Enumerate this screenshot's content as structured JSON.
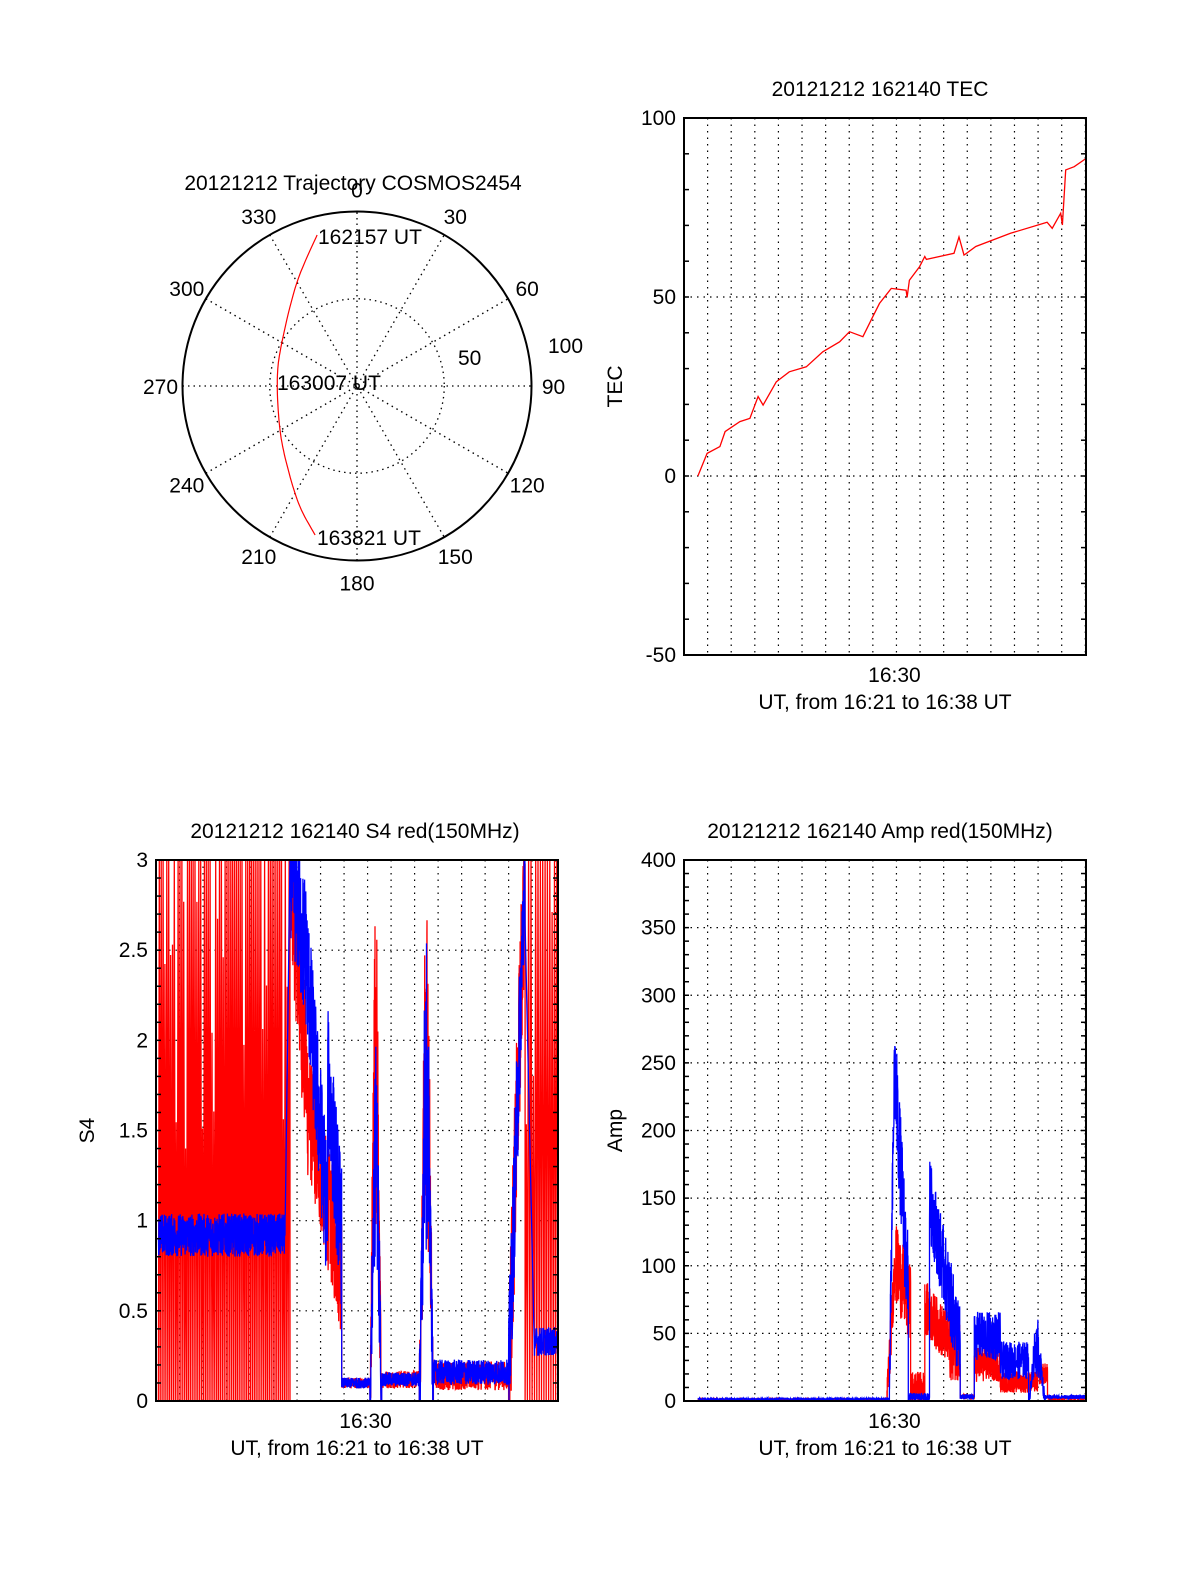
{
  "figure": {
    "background": "#ffffff",
    "series_colors": {
      "red_channel": "#ff0000",
      "blue_channel": "#0000ff"
    }
  },
  "chart_data": [
    {
      "id": "trajectory",
      "type": "polar",
      "title": "20121212 Trajectory COSMOS2454",
      "angle_ticks": [
        "0",
        "30",
        "60",
        "90",
        "120",
        "150",
        "180",
        "210",
        "240",
        "270",
        "300",
        "330"
      ],
      "radial_ticks": [
        "50",
        "100"
      ],
      "radial_range": [
        0,
        100
      ],
      "grid": "dotted",
      "annotations": [
        "162157 UT",
        "163007 UT",
        "163821 UT"
      ],
      "series": [
        {
          "name": "trajectory",
          "color": "#ff0000",
          "azimuth_deg": [
            345.2,
            329.6,
            299.6,
            274.3,
            240.3,
            219.3,
            205.3,
            195.7
          ],
          "radius": [
            89.5,
            68.3,
            49.6,
            45.8,
            50.8,
            62.2,
            76.5,
            88.7
          ]
        }
      ]
    },
    {
      "id": "tec",
      "type": "line",
      "title": "20121212 162140 TEC",
      "xlabel": "UT, from 16:21 to 16:38 UT",
      "ylabel": "TEC",
      "x_unit": "minutes after 16:21:00 UT",
      "xlim": [
        0,
        17.03
      ],
      "x_ticks": [
        {
          "value": 9,
          "label": "16:30"
        }
      ],
      "x_gridlines_every_min": 1,
      "ylim": [
        -50,
        100
      ],
      "y_ticks": [
        "-50",
        "0",
        "50",
        "100"
      ],
      "y_tick_values": [
        -50,
        0,
        50,
        100
      ],
      "grid": true,
      "series": [
        {
          "name": "TEC",
          "color": "#ff0000",
          "x": [
            0.59,
            0.98,
            1.52,
            1.74,
            2.37,
            2.79,
            3.14,
            3.35,
            3.91,
            4.46,
            5.18,
            5.88,
            6.59,
            7.01,
            7.58,
            8.0,
            8.28,
            8.78,
            9.41,
            9.45,
            9.55,
            9.98,
            10.2,
            10.27,
            11.44,
            11.65,
            11.86,
            12.36,
            13.83,
            15.38,
            15.6,
            15.96,
            16.03,
            16.17,
            16.53,
            17.03
          ],
          "y": [
            0,
            6.3,
            8.2,
            12.4,
            15.2,
            16.1,
            22.2,
            19.8,
            26.3,
            29.1,
            30.5,
            34.7,
            37.5,
            40.3,
            38.9,
            44.5,
            48.2,
            52.4,
            51.9,
            49.9,
            54.7,
            58.5,
            61.3,
            60.5,
            62.2,
            66.8,
            61.7,
            64.1,
            67.8,
            70.9,
            69.2,
            73.4,
            70.1,
            85.5,
            86.4,
            88.7
          ]
        }
      ]
    },
    {
      "id": "s4",
      "type": "line",
      "title": "20121212 162140 S4 red(150MHz)",
      "xlabel": "UT, from 16:21 to 16:38 UT",
      "ylabel": "S4",
      "x_unit": "minutes after 16:21:00 UT",
      "xlim": [
        0,
        17.1
      ],
      "x_ticks": [
        {
          "value": 9,
          "label": "16:30"
        }
      ],
      "x_gridlines_every_min": 1,
      "ylim": [
        0,
        3
      ],
      "y_ticks": [
        "0",
        "0.5",
        "1",
        "1.5",
        "2",
        "2.5",
        "3"
      ],
      "y_tick_values": [
        0,
        0.5,
        1,
        1.5,
        2,
        2.5,
        3
      ],
      "grid": true,
      "series": [
        {
          "name": "S4 red channel",
          "color": "#ff0000",
          "segments": [
            {
              "x0": 0.1,
              "x1": 5.7,
              "shape": "spikes",
              "lo": 0,
              "hi": 3,
              "count": 70
            },
            {
              "x0": 5.7,
              "x1": 6.5,
              "shape": "decay",
              "start": 3,
              "end": 1.6,
              "noise": 0.45
            },
            {
              "x0": 6.5,
              "x1": 7.9,
              "shape": "decay",
              "start": 1.6,
              "end": 0.7,
              "noise": 0.35
            },
            {
              "x0": 7.9,
              "x1": 9.1,
              "shape": "flat",
              "level": 0.1,
              "noise": 0.03
            },
            {
              "x0": 9.1,
              "x1": 9.6,
              "shape": "burst",
              "peak": 2.7,
              "base": 0.8,
              "noise": 0.5
            },
            {
              "x0": 9.6,
              "x1": 11.2,
              "shape": "flat",
              "level": 0.12,
              "noise": 0.05
            },
            {
              "x0": 11.2,
              "x1": 11.8,
              "shape": "burst",
              "peak": 2.85,
              "base": 0.9,
              "noise": 0.5
            },
            {
              "x0": 11.8,
              "x1": 15.0,
              "shape": "flat",
              "level": 0.14,
              "noise": 0.08
            },
            {
              "x0": 15.0,
              "x1": 15.7,
              "shape": "rise",
              "start": 0.1,
              "end": 3,
              "noise": 0.5
            },
            {
              "x0": 15.7,
              "x1": 17.1,
              "shape": "spikes",
              "lo": 0,
              "hi": 3,
              "count": 14
            }
          ]
        },
        {
          "name": "S4 blue channel",
          "color": "#0000ff",
          "segments": [
            {
              "x0": 0.1,
              "x1": 5.5,
              "shape": "flat",
              "level": 0.92,
              "noise": 0.12
            },
            {
              "x0": 5.7,
              "x1": 6.3,
              "shape": "decay",
              "start": 3,
              "end": 2.5,
              "noise": 0.4
            },
            {
              "x0": 6.3,
              "x1": 7.3,
              "shape": "decay",
              "start": 2.6,
              "end": 1.0,
              "noise": 0.4
            },
            {
              "x0": 7.3,
              "x1": 7.9,
              "shape": "decay",
              "start": 1.8,
              "end": 0.9,
              "noise": 0.4
            },
            {
              "x0": 7.9,
              "x1": 9.1,
              "shape": "flat",
              "level": 0.1,
              "noise": 0.03
            },
            {
              "x0": 9.1,
              "x1": 9.6,
              "shape": "burst",
              "peak": 1.9,
              "base": 0.8,
              "noise": 0.4
            },
            {
              "x0": 9.6,
              "x1": 11.2,
              "shape": "flat",
              "level": 0.12,
              "noise": 0.04
            },
            {
              "x0": 11.2,
              "x1": 11.8,
              "shape": "burst",
              "peak": 2.45,
              "base": 0.9,
              "noise": 0.5
            },
            {
              "x0": 11.8,
              "x1": 15.0,
              "shape": "flat",
              "level": 0.16,
              "noise": 0.07
            },
            {
              "x0": 15.0,
              "x1": 15.7,
              "shape": "rise",
              "start": 0.1,
              "end": 3,
              "noise": 0.4
            },
            {
              "x0": 16.1,
              "x1": 17.1,
              "shape": "flat",
              "level": 0.33,
              "noise": 0.08
            }
          ]
        }
      ]
    },
    {
      "id": "amp",
      "type": "line",
      "title": "20121212 162140 Amp red(150MHz)",
      "xlabel": "UT, from 16:21 to 16:38 UT",
      "ylabel": "Amp",
      "x_unit": "minutes after 16:21:00 UT",
      "xlim": [
        0,
        17.03
      ],
      "x_ticks": [
        {
          "value": 9,
          "label": "16:30"
        }
      ],
      "x_gridlines_every_min": 1,
      "ylim": [
        0,
        400
      ],
      "y_ticks": [
        "0",
        "50",
        "100",
        "150",
        "200",
        "250",
        "300",
        "350",
        "400"
      ],
      "y_tick_values": [
        0,
        50,
        100,
        150,
        200,
        250,
        300,
        350,
        400
      ],
      "grid": true,
      "series": [
        {
          "name": "Amp red channel",
          "color": "#ff0000",
          "segments": [
            {
              "x0": 0.6,
              "x1": 8.6,
              "shape": "flat",
              "level": 1,
              "noise": 0.5
            },
            {
              "x0": 8.6,
              "x1": 8.9,
              "shape": "rise",
              "start": 2,
              "end": 90,
              "noise": 20
            },
            {
              "x0": 8.9,
              "x1": 9.6,
              "shape": "decay",
              "start": 105,
              "end": 70,
              "noise": 30
            },
            {
              "x0": 9.6,
              "x1": 10.2,
              "shape": "flat",
              "level": 10,
              "noise": 12
            },
            {
              "x0": 10.2,
              "x1": 11.2,
              "shape": "decay",
              "start": 70,
              "end": 45,
              "noise": 20
            },
            {
              "x0": 11.2,
              "x1": 11.7,
              "shape": "flat",
              "level": 40,
              "noise": 25
            },
            {
              "x0": 11.7,
              "x1": 12.3,
              "shape": "flat",
              "level": 3,
              "noise": 2
            },
            {
              "x0": 12.3,
              "x1": 13.4,
              "shape": "flat",
              "level": 28,
              "noise": 14
            },
            {
              "x0": 13.4,
              "x1": 15.0,
              "shape": "flat",
              "level": 14,
              "noise": 8
            },
            {
              "x0": 15.0,
              "x1": 15.4,
              "shape": "flat",
              "level": 20,
              "noise": 8
            },
            {
              "x0": 15.4,
              "x1": 17.03,
              "shape": "flat",
              "level": 2,
              "noise": 1.5
            }
          ]
        },
        {
          "name": "Amp blue channel",
          "color": "#0000ff",
          "segments": [
            {
              "x0": 0.6,
              "x1": 8.7,
              "shape": "flat",
              "level": 1.5,
              "noise": 0.6
            },
            {
              "x0": 8.7,
              "x1": 8.9,
              "shape": "rise",
              "start": 2,
              "end": 230,
              "noise": 30
            },
            {
              "x0": 8.9,
              "x1": 9.5,
              "shape": "decay",
              "start": 250,
              "end": 80,
              "noise": 40
            },
            {
              "x0": 9.5,
              "x1": 10.4,
              "shape": "flat",
              "level": 3,
              "noise": 3
            },
            {
              "x0": 10.4,
              "x1": 11.7,
              "shape": "decay",
              "start": 150,
              "end": 40,
              "noise": 30
            },
            {
              "x0": 11.7,
              "x1": 12.3,
              "shape": "flat",
              "level": 3,
              "noise": 2
            },
            {
              "x0": 12.3,
              "x1": 13.4,
              "shape": "flat",
              "level": 48,
              "noise": 18
            },
            {
              "x0": 13.4,
              "x1": 14.6,
              "shape": "flat",
              "level": 30,
              "noise": 14
            },
            {
              "x0": 14.6,
              "x1": 15.3,
              "shape": "burst",
              "peak": 60,
              "base": 20,
              "noise": 10
            },
            {
              "x0": 15.3,
              "x1": 17.03,
              "shape": "flat",
              "level": 3,
              "noise": 1.5
            }
          ]
        }
      ]
    }
  ]
}
